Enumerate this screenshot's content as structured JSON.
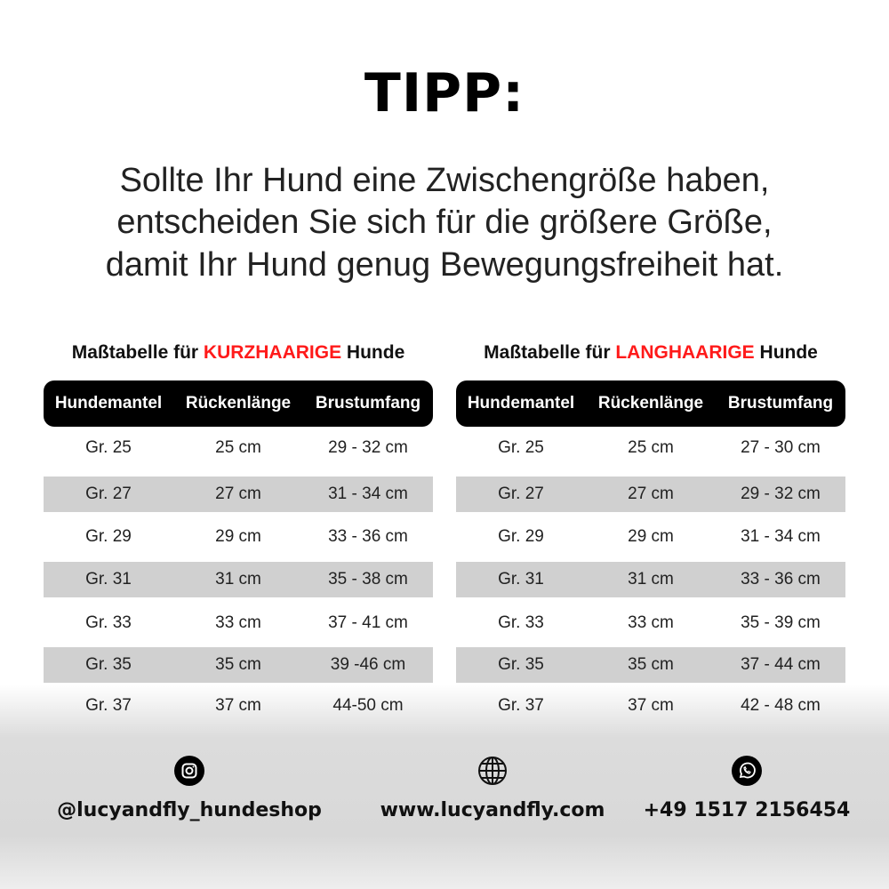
{
  "title": "TIPP:",
  "tip_lines": [
    "Sollte Ihr Hund eine Zwischengröße haben,",
    "entscheiden Sie sich für die größere Größe,",
    "damit Ihr Hund genug Bewegungsfreiheit hat."
  ],
  "accent_color": "#ff1a1a",
  "tables": [
    {
      "caption_prefix": "Maßtabelle für ",
      "caption_highlight": "KURZHAARIGE",
      "caption_suffix": " Hunde",
      "headers": [
        "Hundemantel",
        "Rückenlänge",
        "Brustumfang"
      ],
      "rows": [
        [
          "Gr. 25",
          "25 cm",
          "29 - 32 cm"
        ],
        [
          "Gr. 27",
          "27 cm",
          "31 - 34 cm"
        ],
        [
          "Gr. 29",
          "29 cm",
          "33 - 36 cm"
        ],
        [
          "Gr. 31",
          "31 cm",
          "35 - 38 cm"
        ],
        [
          "Gr. 33",
          "33 cm",
          "37 - 41 cm"
        ],
        [
          "Gr. 35",
          "35 cm",
          "39 -46 cm"
        ],
        [
          "Gr. 37",
          "37 cm",
          "44-50 cm"
        ]
      ]
    },
    {
      "caption_prefix": "Maßtabelle für ",
      "caption_highlight": "LANGHAARIGE",
      "caption_suffix": " Hunde",
      "headers": [
        "Hundemantel",
        "Rückenlänge",
        "Brustumfang"
      ],
      "rows": [
        [
          "Gr. 25",
          "25 cm",
          "27 - 30 cm"
        ],
        [
          "Gr. 27",
          "27 cm",
          "29 - 32 cm"
        ],
        [
          "Gr. 29",
          "29 cm",
          "31 - 34 cm"
        ],
        [
          "Gr. 31",
          "31 cm",
          "33 - 36 cm"
        ],
        [
          "Gr. 33",
          "33 cm",
          "35 - 39 cm"
        ],
        [
          "Gr. 35",
          "35 cm",
          "37 - 44 cm"
        ],
        [
          "Gr. 37",
          "37 cm",
          "42 - 48 cm"
        ]
      ]
    }
  ],
  "footer": [
    {
      "icon": "instagram-icon",
      "text": "@lucyandfly_hundeshop"
    },
    {
      "icon": "globe-icon",
      "text": "www.lucyandfly.com"
    },
    {
      "icon": "whatsapp-icon",
      "text": "+49 1517 2156454"
    }
  ]
}
